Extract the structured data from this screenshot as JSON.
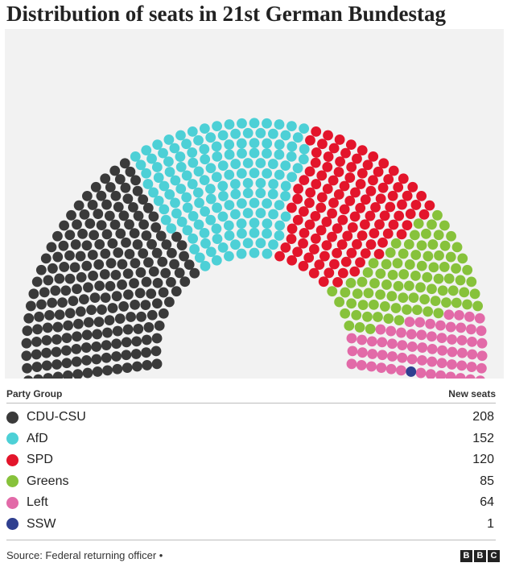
{
  "title": "Distribution of seats in 21st German Bundestag",
  "legend": {
    "header_left": "Party Group",
    "header_right": "New seats"
  },
  "source": "Source: Federal returning officer •",
  "logo": [
    "B",
    "B",
    "C"
  ],
  "chart_data": {
    "type": "parliament",
    "title": "Distribution of seats in 21st German Bundestag",
    "total_seats": 630,
    "categories": [
      "CDU-CSU",
      "AfD",
      "SPD",
      "Greens",
      "Left",
      "SSW"
    ],
    "values": [
      208,
      152,
      120,
      85,
      64,
      1
    ],
    "colors": [
      "#3a3a3a",
      "#4dd0d6",
      "#e3152b",
      "#87c23b",
      "#e26aa8",
      "#2f3f8f"
    ]
  }
}
